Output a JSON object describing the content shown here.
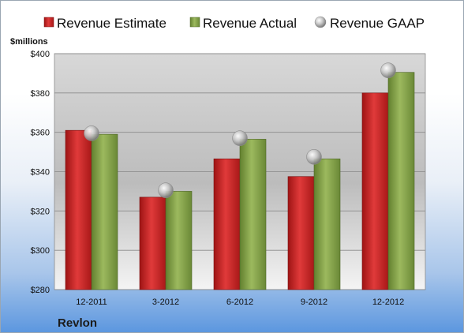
{
  "company": "Revlon",
  "chart_data": {
    "type": "bar",
    "ylabel": "$millions",
    "ylim": [
      280,
      400
    ],
    "y_ticks": [
      "$280",
      "$300",
      "$320",
      "$340",
      "$360",
      "$380",
      "$400"
    ],
    "grid": true,
    "legend_position": "top",
    "categories": [
      "12-2011",
      "3-2012",
      "6-2012",
      "9-2012",
      "12-2012"
    ],
    "series": [
      {
        "name": "Revenue Estimate",
        "kind": "bar",
        "color": "#d42a2a",
        "values": [
          361,
          327,
          346.5,
          337.5,
          380
        ]
      },
      {
        "name": "Revenue Actual",
        "kind": "bar",
        "color": "#8aa84f",
        "values": [
          359,
          330,
          356.5,
          346.5,
          390.5
        ]
      },
      {
        "name": "Revenue GAAP",
        "kind": "marker",
        "color": "#b8b8b8",
        "values": [
          359.5,
          330.5,
          357,
          347.5,
          391.5
        ]
      }
    ]
  }
}
